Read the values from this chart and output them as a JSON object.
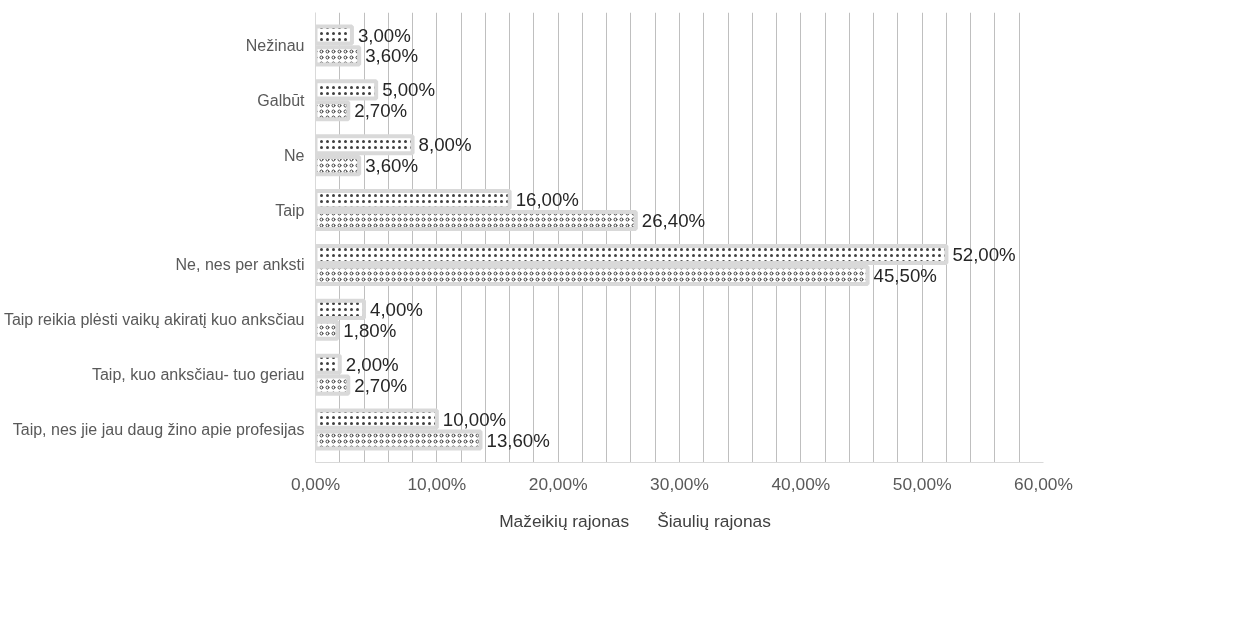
{
  "chart_data": {
    "type": "bar",
    "orientation": "horizontal",
    "categories": [
      "Nežinau",
      "Galbūt",
      "Ne",
      "Taip",
      "Ne, nes per anksti",
      "Taip reikia plėsti vaikų akiratį kuo anksčiau",
      "Taip, kuo anksčiau- tuo geriau",
      "Taip, nes jie jau daug žino apie profesijas"
    ],
    "series": [
      {
        "name": "Mažeikių rajonas",
        "color": "#d9d9d9",
        "values": [
          3.0,
          5.0,
          8.0,
          16.0,
          52.0,
          4.0,
          2.0,
          10.0
        ],
        "value_labels": [
          "3,00%",
          "5,00%",
          "8,00%",
          "16,00%",
          "52,00%",
          "4,00%",
          "2,00%",
          "10,00%"
        ]
      },
      {
        "name": "Šiaulių rajonas",
        "color": "#d9d9d9",
        "values": [
          3.6,
          2.7,
          3.6,
          26.4,
          45.5,
          1.8,
          2.7,
          13.6
        ],
        "value_labels": [
          "3,60%",
          "2,70%",
          "3,60%",
          "26,40%",
          "45,50%",
          "1,80%",
          "2,70%",
          "13,60%"
        ]
      }
    ],
    "xlim": [
      0,
      60
    ],
    "xticks": [
      {
        "value": 0,
        "label": "0,00%"
      },
      {
        "value": 2,
        "label": null
      },
      {
        "value": 4,
        "label": null
      },
      {
        "value": 6,
        "label": null
      },
      {
        "value": 8,
        "label": null
      },
      {
        "value": 10,
        "label": "10,00%"
      },
      {
        "value": 12,
        "label": null
      },
      {
        "value": 14,
        "label": null
      },
      {
        "value": 16,
        "label": null
      },
      {
        "value": 18,
        "label": null
      },
      {
        "value": 20,
        "label": "20,00%"
      },
      {
        "value": 22,
        "label": null
      },
      {
        "value": 24,
        "label": null
      },
      {
        "value": 26,
        "label": null
      },
      {
        "value": 28,
        "label": null
      },
      {
        "value": 30,
        "label": "30,00%"
      },
      {
        "value": 32,
        "label": null
      },
      {
        "value": 34,
        "label": null
      },
      {
        "value": 36,
        "label": null
      },
      {
        "value": 38,
        "label": null
      },
      {
        "value": 40,
        "label": "40,00%"
      },
      {
        "value": 42,
        "label": null
      },
      {
        "value": 44,
        "label": null
      },
      {
        "value": 46,
        "label": null
      },
      {
        "value": 48,
        "label": null
      },
      {
        "value": 50,
        "label": "50,00%"
      },
      {
        "value": 52,
        "label": null
      },
      {
        "value": 54,
        "label": null
      },
      {
        "value": 56,
        "label": null
      },
      {
        "value": 58,
        "label": null
      },
      {
        "value": 60,
        "label": "60,00%"
      }
    ],
    "grid": "x",
    "legend": "bottom"
  }
}
